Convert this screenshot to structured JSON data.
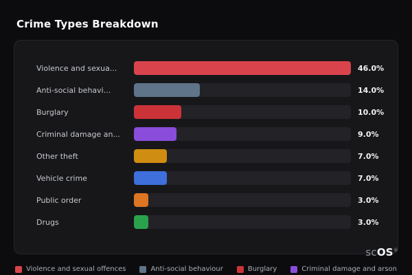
{
  "page": {
    "title": "Crime Types Breakdown"
  },
  "brand": {
    "prefix": "sc",
    "suffix": "OS",
    "reg": "®"
  },
  "chart_data": {
    "type": "bar",
    "orientation": "horizontal",
    "title": "Crime Types Breakdown",
    "categories": [
      "Violence and sexua...",
      "Anti-social behavi...",
      "Burglary",
      "Criminal damage an...",
      "Other theft",
      "Vehicle crime",
      "Public order",
      "Drugs"
    ],
    "values": [
      46.0,
      14.0,
      10.0,
      9.0,
      7.0,
      7.0,
      3.0,
      3.0
    ],
    "value_labels": [
      "46.0%",
      "14.0%",
      "10.0%",
      "9.0%",
      "7.0%",
      "7.0%",
      "3.0%",
      "3.0%"
    ],
    "bar_colors": [
      "#d9444c",
      "#5f7488",
      "#cc3339",
      "#8a4ddb",
      "#cf8d12",
      "#3e6fdb",
      "#dd7522",
      "#2aa24c"
    ],
    "max_value": 46.0,
    "xlim": [
      0,
      46
    ],
    "grid": false,
    "legend_position": "bottom",
    "legend": [
      {
        "label": "Violence and sexual offences",
        "color": "#d9444c"
      },
      {
        "label": "Anti-social behaviour",
        "color": "#5f7488"
      },
      {
        "label": "Burglary",
        "color": "#cc3339"
      },
      {
        "label": "Criminal damage and arson",
        "color": "#8a4ddb"
      }
    ]
  }
}
